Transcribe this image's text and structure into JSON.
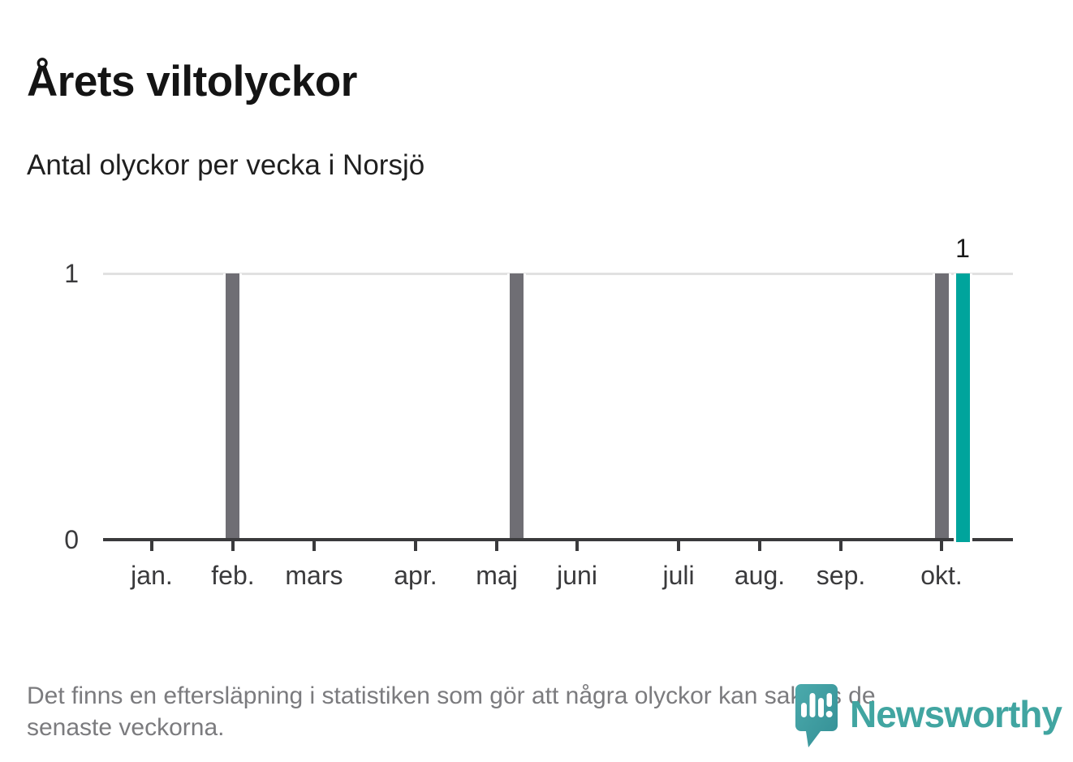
{
  "title": "Årets viltolyckor",
  "subtitle": "Antal olyckor per vecka i Norsjö",
  "footer": {
    "lines": [
      "Det finns en eftersläpning i statistiken som gör att några olyckor kan saknas de",
      "senaste veckorna."
    ]
  },
  "logo": {
    "name": "Newsworthy"
  },
  "colors": {
    "bar_default": "#6F6E74",
    "bar_highlight": "#00A49C",
    "gridline": "#E1E1E1",
    "axis": "#3A3A3C",
    "brand_teal": "#41A5A1"
  },
  "chart_data": {
    "type": "bar",
    "title": "Årets viltolyckor",
    "subtitle": "Antal olyckor per vecka i Norsjö",
    "xlabel": "",
    "ylabel": "",
    "x_unit": "vecka (januari–oktober)",
    "ylim": [
      0,
      1
    ],
    "yticks": [
      0,
      1
    ],
    "ytick_labels": [
      "0",
      "1"
    ],
    "grid": "single horizontal gridline at y=1",
    "legend": "none",
    "months": [
      {
        "label": "jan.",
        "x_pct": 5.35
      },
      {
        "label": "feb.",
        "x_pct": 14.27
      },
      {
        "label": "mars",
        "x_pct": 23.19
      },
      {
        "label": "apr.",
        "x_pct": 34.34
      },
      {
        "label": "maj",
        "x_pct": 43.27
      },
      {
        "label": "juni",
        "x_pct": 52.1
      },
      {
        "label": "juli",
        "x_pct": 63.25
      },
      {
        "label": "aug.",
        "x_pct": 72.17
      },
      {
        "label": "sep.",
        "x_pct": 81.09
      },
      {
        "label": "okt.",
        "x_pct": 92.15
      }
    ],
    "bars": [
      {
        "week_of": "februari",
        "value": 1,
        "x_pct": 14.27,
        "highlight": false
      },
      {
        "week_of": "maj",
        "value": 1,
        "x_pct": 45.41,
        "highlight": false
      },
      {
        "week_of": "oktober",
        "value": 1,
        "x_pct": 92.15,
        "highlight": false
      },
      {
        "week_of": "oktober (senaste veckan)",
        "value": 1,
        "x_pct": 94.47,
        "highlight": true,
        "data_label": "1"
      }
    ]
  }
}
